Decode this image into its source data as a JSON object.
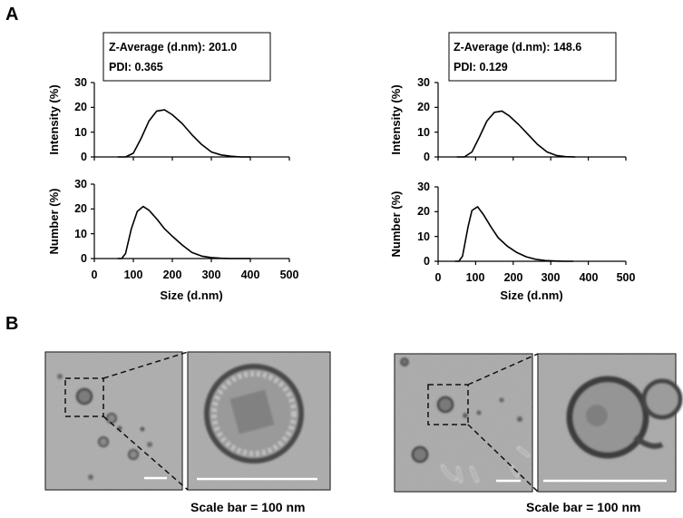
{
  "panel_a_label": "A",
  "panel_b_label": "B",
  "chart_data": [
    {
      "type": "line",
      "panel": "A-left-intensity",
      "x": [
        60,
        80,
        100,
        120,
        140,
        160,
        180,
        200,
        225,
        250,
        275,
        300,
        325,
        350,
        375,
        400
      ],
      "y": [
        0,
        0,
        1.5,
        7.5,
        14.5,
        18.5,
        19,
        17,
        13.5,
        9,
        5,
        2,
        0.8,
        0.3,
        0,
        0
      ],
      "xlim": [
        0,
        500
      ],
      "ylim": [
        0,
        30
      ],
      "yticks": [
        "0",
        "10",
        "20",
        "30"
      ],
      "ylabel": "Intensity (%)",
      "annotation": [
        "Z-Average (d.nm): 201.0",
        "PDI: 0.365"
      ]
    },
    {
      "type": "line",
      "panel": "A-left-number",
      "x": [
        60,
        70,
        80,
        95,
        110,
        125,
        140,
        160,
        180,
        200,
        225,
        250,
        275,
        300,
        325,
        350,
        375,
        400
      ],
      "y": [
        0,
        0,
        2,
        12,
        19,
        21,
        19.5,
        16,
        12,
        9,
        5.5,
        2.5,
        1,
        0.4,
        0.1,
        0,
        0,
        0
      ],
      "xlim": [
        0,
        500
      ],
      "ylim": [
        0,
        30
      ],
      "xticks": [
        "0",
        "100",
        "200",
        "300",
        "400",
        "500"
      ],
      "yticks": [
        "0",
        "10",
        "20",
        "30"
      ],
      "xlabel": "Size (d.nm)",
      "ylabel": "Number (%)"
    },
    {
      "type": "line",
      "panel": "A-right-intensity",
      "x": [
        50,
        70,
        90,
        110,
        130,
        150,
        170,
        190,
        215,
        240,
        265,
        290,
        315,
        340,
        365
      ],
      "y": [
        0,
        0,
        2,
        8,
        14.5,
        18,
        18.5,
        16.5,
        13,
        9,
        5,
        2,
        0.6,
        0.1,
        0
      ],
      "xlim": [
        0,
        500
      ],
      "ylim": [
        0,
        30
      ],
      "yticks": [
        "0",
        "10",
        "20",
        "30"
      ],
      "ylabel": "Intensity (%)",
      "annotation": [
        "Z-Average (d.nm): 148.6",
        "PDI: 0.129"
      ]
    },
    {
      "type": "line",
      "panel": "A-right-number",
      "x": [
        45,
        55,
        65,
        80,
        90,
        105,
        120,
        140,
        160,
        185,
        210,
        235,
        260,
        285,
        310,
        335,
        360
      ],
      "y": [
        0,
        0,
        2,
        14,
        20.5,
        22,
        19,
        14,
        9.5,
        6,
        3.5,
        1.8,
        0.8,
        0.3,
        0.1,
        0,
        0
      ],
      "xlim": [
        0,
        500
      ],
      "ylim": [
        0,
        30
      ],
      "xticks": [
        "0",
        "100",
        "200",
        "300",
        "400",
        "500"
      ],
      "yticks": [
        "0",
        "10",
        "20",
        "30"
      ],
      "xlabel": "Size (d.nm)",
      "ylabel": "Number (%)"
    }
  ],
  "scale_captions": [
    "Scale bar = 100 nm",
    "Scale bar = 100 nm"
  ],
  "colors": {
    "line": "#000000",
    "tem_background": "#a8a8a8",
    "particle_dark": "#4a4a4a",
    "scale_bar": "#ffffff"
  }
}
